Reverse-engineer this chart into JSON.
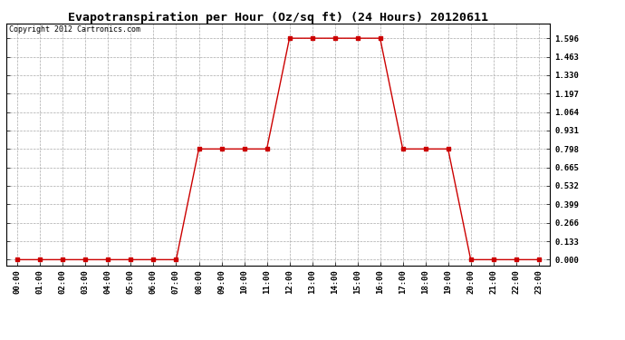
{
  "title": "Evapotranspiration per Hour (Oz/sq ft) (24 Hours) 20120611",
  "copyright_text": "Copyright 2012 Cartronics.com",
  "hours": [
    0,
    1,
    2,
    3,
    4,
    5,
    6,
    7,
    8,
    9,
    10,
    11,
    12,
    13,
    14,
    15,
    16,
    17,
    18,
    19,
    20,
    21,
    22,
    23
  ],
  "values": [
    0.0,
    0.0,
    0.0,
    0.0,
    0.0,
    0.0,
    0.0,
    0.0,
    0.798,
    0.798,
    0.798,
    0.798,
    1.596,
    1.596,
    1.596,
    1.596,
    1.596,
    0.798,
    0.798,
    0.798,
    0.0,
    0.0,
    0.0,
    0.0
  ],
  "line_color": "#cc0000",
  "marker": "s",
  "marker_size": 2.5,
  "background_color": "#ffffff",
  "plot_bg_color": "#ffffff",
  "grid_color": "#aaaaaa",
  "grid_style": "--",
  "yticks": [
    0.0,
    0.133,
    0.266,
    0.399,
    0.532,
    0.665,
    0.798,
    0.931,
    1.064,
    1.197,
    1.33,
    1.463,
    1.596
  ],
  "ylim": [
    -0.04,
    1.7
  ],
  "xlim": [
    -0.5,
    23.5
  ],
  "title_fontsize": 9.5,
  "tick_fontsize": 6.5,
  "copyright_fontsize": 6.0
}
